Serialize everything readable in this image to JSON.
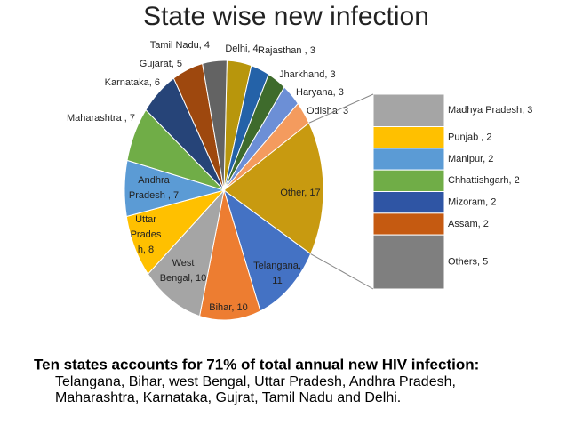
{
  "chart_data": [
    {
      "type": "pie",
      "title": "State wise new infection",
      "values": [
        4,
        3,
        3,
        3,
        3,
        17,
        11,
        10,
        10,
        8,
        7,
        7,
        6,
        5,
        4
      ],
      "value_labels": [
        [
          "Delhi, 4"
        ],
        [
          "Rajasthan , 3"
        ],
        [
          "Jharkhand, 3"
        ],
        [
          "Haryana, 3"
        ],
        [
          "Odisha, 3"
        ],
        [
          "Other, 17"
        ],
        [
          "Telangana,",
          "11"
        ],
        [
          "Bihar, 10"
        ],
        [
          "West",
          "Bengal, 10"
        ],
        [
          "Uttar",
          "Prades",
          "h, 8"
        ],
        [
          "Andhra",
          "Pradesh , 7"
        ],
        [
          "Maharashtra , 7"
        ],
        [
          "Karnataka, 6"
        ],
        [
          "Gujarat, 5"
        ],
        [
          "Tamil Nadu, 4"
        ]
      ],
      "colors": [
        "#b8960c",
        "#2462a8",
        "#3e6b2c",
        "#6c8fd6",
        "#f49b5e",
        "#c89a10",
        "#4472c4",
        "#ed7d31",
        "#a5a5a5",
        "#ffc000",
        "#5b9bd5",
        "#70ad47",
        "#264478",
        "#9e480e",
        "#636363"
      ]
    },
    {
      "type": "stacked-bar",
      "values": [
        3,
        2,
        2,
        2,
        2,
        2,
        5
      ],
      "value_labels": [
        "Madhya Pradesh, 3",
        "Punjab , 2",
        "Manipur, 2",
        "Chhattishgarh, 2",
        "Mizoram, 2",
        "Assam, 2",
        "Others, 5"
      ],
      "colors": [
        "#a5a5a5",
        "#ffc000",
        "#5b9bd5",
        "#70ad47",
        "#2f55a4",
        "#c55a11",
        "#7f7f7f"
      ]
    }
  ],
  "note": {
    "heading": "Ten states accounts for 71% of total annual new HIV infection:",
    "lines": [
      "Telangana, Bihar, west Bengal, Uttar Pradesh, Andhra Pradesh,",
      "Maharashtra, Karnataka, Gujrat, Tamil Nadu and Delhi."
    ]
  }
}
